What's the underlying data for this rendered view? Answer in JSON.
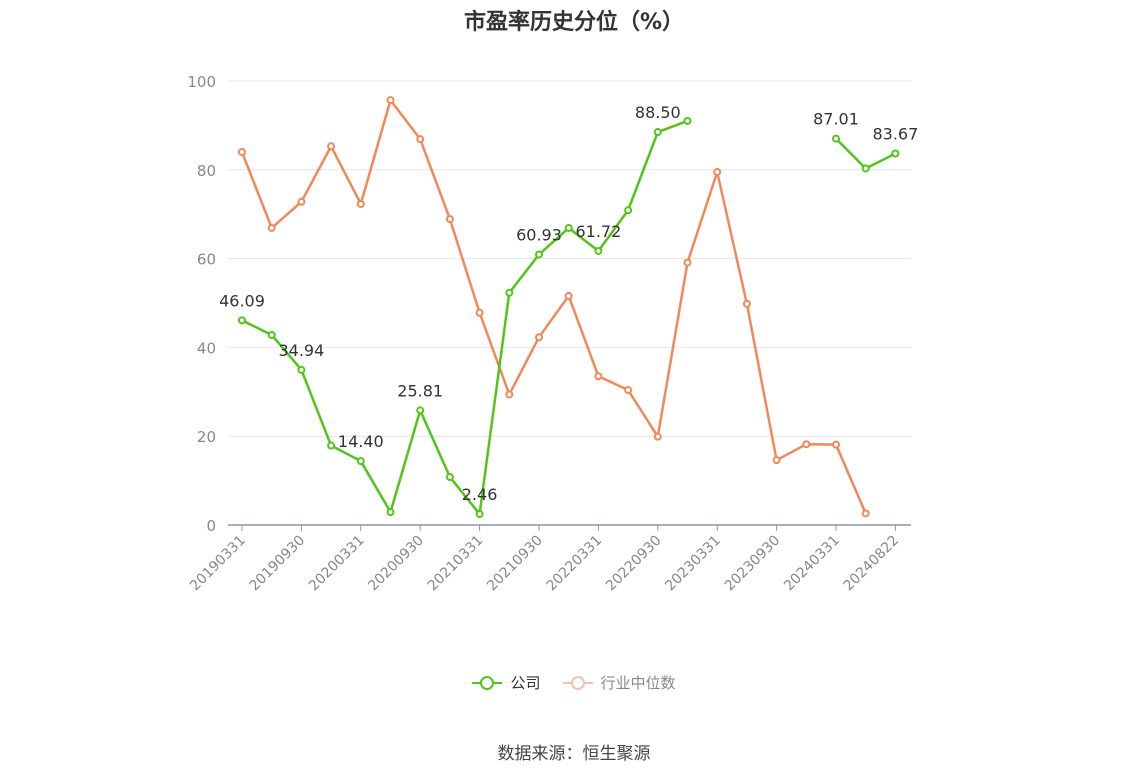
{
  "title": "市盈率历史分位（%）",
  "source": "数据来源：恒生聚源",
  "legend": [
    {
      "name": "公司",
      "color": "#52c41a"
    },
    {
      "name": "行业中位数",
      "color": "#f0895a"
    }
  ],
  "chart_data": {
    "type": "line",
    "title": "市盈率历史分位（%）",
    "xlabel": "",
    "ylabel": "",
    "ylim": [
      0,
      100
    ],
    "yticks": [
      0,
      20,
      40,
      60,
      80,
      100
    ],
    "grid": true,
    "legend_position": "bottom",
    "x": [
      "20190331",
      "20190630",
      "20190930",
      "20191231",
      "20200331",
      "20200630",
      "20200930",
      "20201231",
      "20210331",
      "20210630",
      "20210930",
      "20211231",
      "20220331",
      "20220630",
      "20220930",
      "20221231",
      "20230331",
      "20230630",
      "20230930",
      "20231231",
      "20240331",
      "20240630",
      "20240822"
    ],
    "x_tick_labels": [
      "20190331",
      "20190930",
      "20200331",
      "20200930",
      "20210331",
      "20210930",
      "20220331",
      "20220930",
      "20230331",
      "20230930",
      "20240331",
      "20240822"
    ],
    "series": [
      {
        "name": "公司",
        "color": "#52c41a",
        "values": [
          46.09,
          42.8,
          34.94,
          17.9,
          14.4,
          2.9,
          25.81,
          10.8,
          2.46,
          52.3,
          60.93,
          66.9,
          61.72,
          70.9,
          88.5,
          91.0,
          null,
          null,
          null,
          null,
          87.01,
          80.3,
          83.67
        ],
        "labels": [
          "46.09",
          null,
          "34.94",
          null,
          "14.40",
          null,
          "25.81",
          null,
          "2.46",
          null,
          "60.93",
          null,
          "61.72",
          null,
          "88.50",
          null,
          null,
          null,
          null,
          null,
          "87.01",
          null,
          "83.67"
        ]
      },
      {
        "name": "行业中位数",
        "color": "#f0895a",
        "values": [
          84.0,
          66.9,
          72.8,
          85.3,
          72.3,
          95.7,
          86.9,
          68.9,
          47.8,
          29.4,
          42.3,
          51.6,
          33.5,
          30.4,
          19.9,
          59.1,
          79.5,
          49.8,
          14.6,
          18.2,
          18.1,
          2.6,
          null
        ]
      }
    ]
  }
}
